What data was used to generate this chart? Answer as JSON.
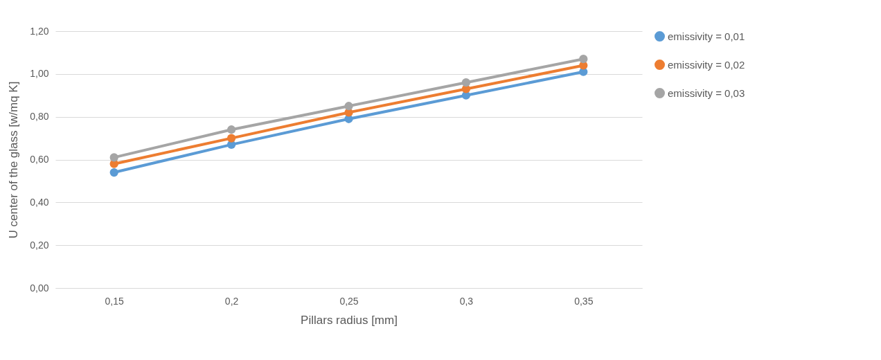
{
  "chart_data": {
    "type": "line",
    "xlabel": "Pillars radius [mm]",
    "ylabel": "U center of the glass [w/mq K]",
    "categories": [
      "0,15",
      "0,2",
      "0,25",
      "0,3",
      "0,35"
    ],
    "series": [
      {
        "name": "emissivity = 0,01",
        "color": "#5b9bd5",
        "values": [
          0.54,
          0.67,
          0.79,
          0.9,
          1.01
        ]
      },
      {
        "name": "emissivity = 0,02",
        "color": "#ed7d31",
        "values": [
          0.58,
          0.7,
          0.82,
          0.93,
          1.04
        ]
      },
      {
        "name": "emissivity = 0,03",
        "color": "#a5a5a5",
        "values": [
          0.61,
          0.74,
          0.85,
          0.96,
          1.07
        ]
      }
    ],
    "ylim": [
      0,
      1.2
    ],
    "yticks": [
      {
        "value": 0,
        "label": "0,00"
      },
      {
        "value": 0.2,
        "label": "0,20"
      },
      {
        "value": 0.4,
        "label": "0,40"
      },
      {
        "value": 0.6,
        "label": "0,60"
      },
      {
        "value": 0.8,
        "label": "0,80"
      },
      {
        "value": 1,
        "label": "1,00"
      },
      {
        "value": 1.2,
        "label": "1,20"
      }
    ],
    "grid": "y",
    "legend": "right",
    "marker": "circle",
    "line_style": "solid"
  }
}
